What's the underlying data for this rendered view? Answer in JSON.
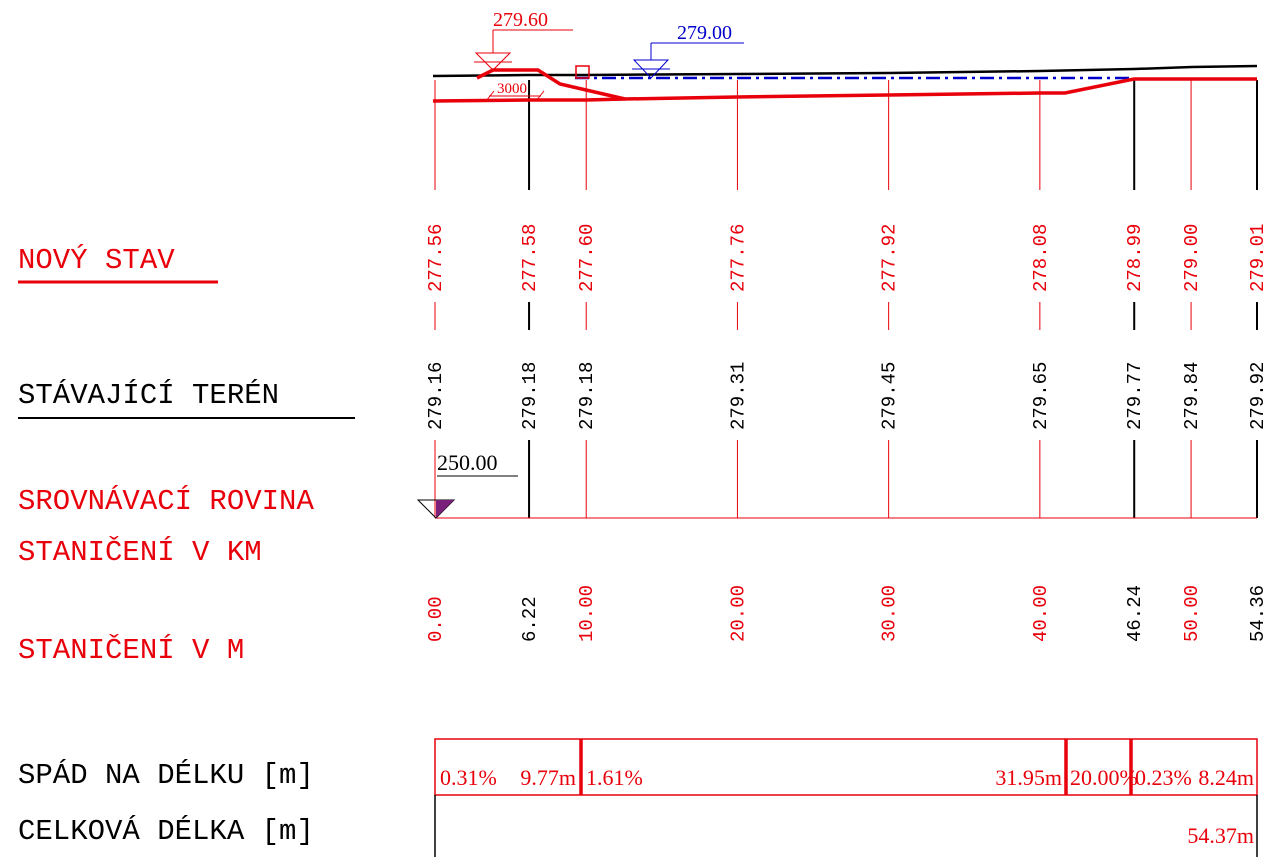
{
  "colors": {
    "new": "#e8000b",
    "existing": "#000000",
    "water": "#0000cc",
    "datum_fill": "#7a1f7a",
    "grid": "#e8000b"
  },
  "labels": {
    "new_state": "NOVÝ STAV",
    "existing_terrain": "STÁVAJÍCÍ TERÉN",
    "datum": "SROVNÁVACÍ ROVINA",
    "station_km": "STANIČENÍ V KM",
    "station_m": "STANIČENÍ V M",
    "slope_length": "SPÁD NA DÉLKU [m]",
    "total_length": "CELKOVÁ DÉLKA [m]"
  },
  "annotations": {
    "top_level": "279.60",
    "water_level": "279.00",
    "dimension": "3000",
    "datum_value": "250.00"
  },
  "stations": [
    {
      "m": "0.00",
      "new": "277.56",
      "existing": "279.16",
      "kind": "red"
    },
    {
      "m": "6.22",
      "new": "277.58",
      "existing": "279.18",
      "kind": "black"
    },
    {
      "m": "10.00",
      "new": "277.60",
      "existing": "279.18",
      "kind": "red"
    },
    {
      "m": "20.00",
      "new": "277.76",
      "existing": "279.31",
      "kind": "red"
    },
    {
      "m": "30.00",
      "new": "277.92",
      "existing": "279.45",
      "kind": "red"
    },
    {
      "m": "40.00",
      "new": "278.08",
      "existing": "279.65",
      "kind": "red"
    },
    {
      "m": "46.24",
      "new": "278.99",
      "existing": "279.77",
      "kind": "black"
    },
    {
      "m": "50.00",
      "new": "279.00",
      "existing": "279.84",
      "kind": "red"
    },
    {
      "m": "54.36",
      "new": "279.01",
      "existing": "279.92",
      "kind": "black"
    }
  ],
  "slopes": [
    {
      "slope": "0.31%",
      "length": "9.77m"
    },
    {
      "slope": "1.61%",
      "length": "31.95m"
    },
    {
      "slope": "20.00%",
      "length": ""
    },
    {
      "slope": "0.23%",
      "length": "8.24m"
    }
  ],
  "total_length": "54.37m"
}
